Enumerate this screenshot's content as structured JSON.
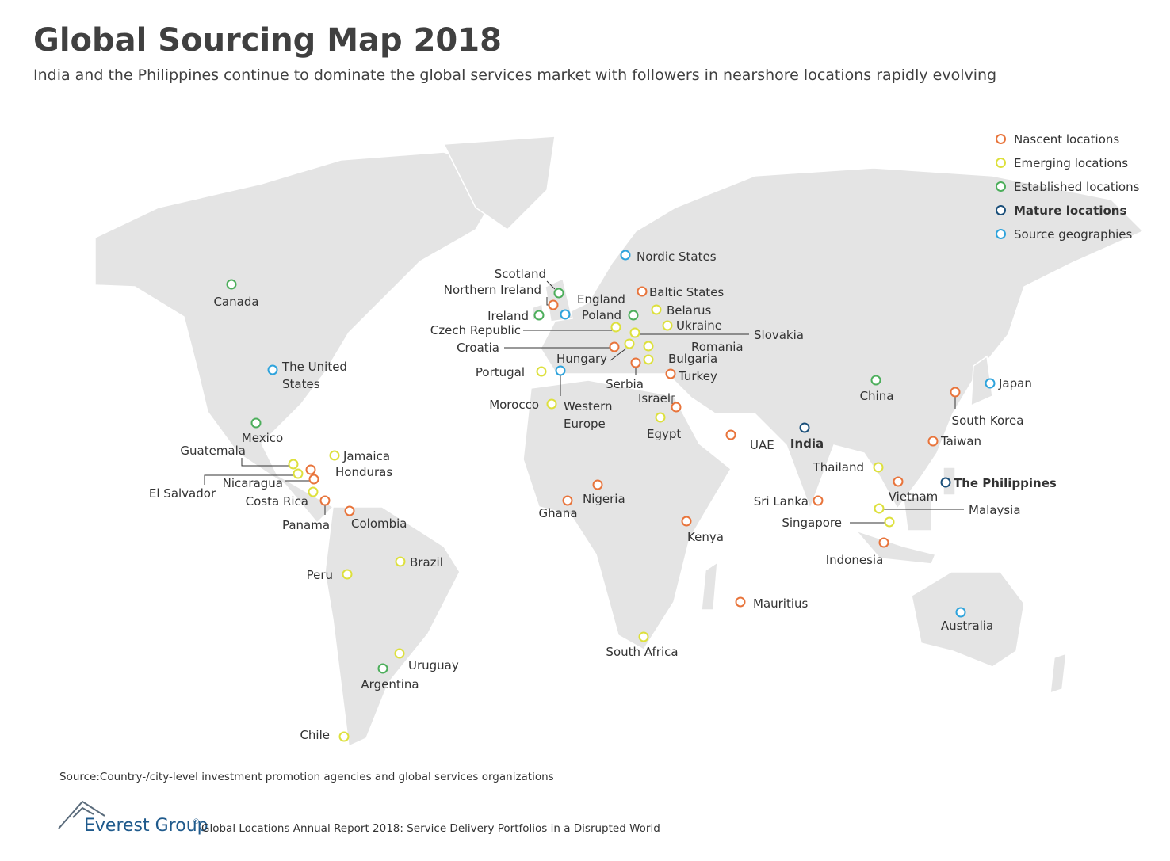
{
  "header": {
    "title": "Global Sourcing Map 2018",
    "subtitle": "India and the Philippines continue to dominate the global services market with followers in nearshore locations rapidly evolving"
  },
  "groups": [
    {
      "label": "Nascent locations",
      "color": "#e8743b",
      "bold": false,
      "locations": [
        "Northern Ireland",
        "Baltic States",
        "Croatia",
        "Serbia",
        "Turkey",
        "Israel",
        "UAE",
        "Honduras",
        "Nicaragua",
        "Panama",
        "Colombia",
        "Ghana",
        "Nigeria",
        "Kenya",
        "Mauritius",
        "Sri Lanka",
        "Taiwan",
        "South Korea",
        "Vietnam",
        "Indonesia"
      ]
    },
    {
      "label": "Emerging locations",
      "color": "#dde03c",
      "bold": false,
      "locations": [
        "Belarus",
        "Ukraine",
        "Czech Republic",
        "Slovakia",
        "Romania",
        "Bulgaria",
        "Hungary",
        "Portugal",
        "Morocco",
        "Egypt",
        "Guatemala",
        "El Salvador",
        "Jamaica",
        "Costa Rica",
        "Brazil",
        "Peru",
        "Uruguay",
        "Chile",
        "South Africa",
        "Thailand",
        "Malaysia",
        "Singapore"
      ]
    },
    {
      "label": "Established locations",
      "color": "#4cae5b",
      "bold": false,
      "locations": [
        "Canada",
        "Mexico",
        "Scotland",
        "Ireland",
        "Poland",
        "China",
        "Argentina"
      ]
    },
    {
      "label": "Mature locations",
      "color": "#1a4f7a",
      "bold": true,
      "locations": [
        "India",
        "The Philippines"
      ]
    },
    {
      "label": "Source geographies",
      "color": "#2ea3dc",
      "bold": false,
      "locations": [
        "Nordic States",
        "England",
        "The United States",
        "Western Europe",
        "Japan",
        "Australia"
      ]
    }
  ],
  "source": "Source:Country-/city-level investment promotion agencies and global services organizations",
  "footer": {
    "brand": "Everest Group",
    "trademark": "®",
    "report": "Global Locations Annual Report 2018: Service Delivery Portfolios in a Disrupted World"
  }
}
